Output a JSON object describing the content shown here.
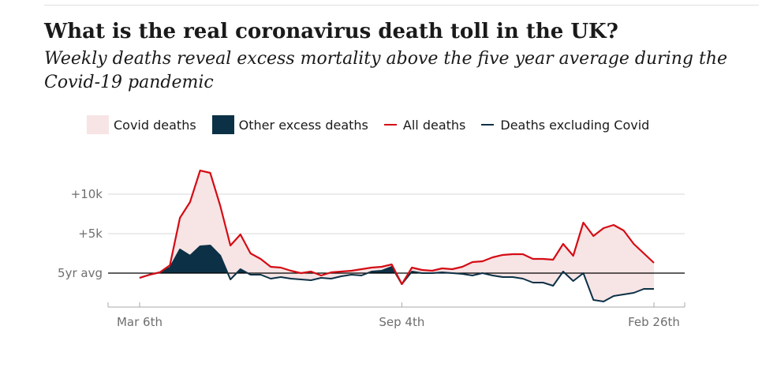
{
  "title": "What is the real coronavirus death toll in the UK?",
  "subtitle": "Weekly deaths reveal excess mortality above the five year average during the Covid-19 pandemic",
  "colors": {
    "covid": "#f7e4e5",
    "other_excess": "#0c3146",
    "all_deaths": "#d40c14",
    "excl_covid": "#0c3146",
    "baseline": "#000000",
    "grid": "#d9d9d9",
    "axis": "#aaaaaa",
    "tick_text": "#6e6e6e"
  },
  "legend": [
    {
      "key": "covid",
      "label": "Covid deaths",
      "kind": "box",
      "icon": "pink-box"
    },
    {
      "key": "other_excess",
      "label": "Other excess deaths",
      "kind": "box",
      "icon": "navy-box"
    },
    {
      "key": "all_deaths",
      "label": "All deaths",
      "kind": "line",
      "icon": "red-line"
    },
    {
      "key": "excl_covid",
      "label": "Deaths excluding Covid",
      "kind": "line",
      "icon": "navy-line"
    }
  ],
  "chart_data": {
    "type": "area",
    "title": "What is the real coronavirus death toll in the UK?",
    "subtitle": "Weekly deaths reveal excess mortality above the five year average during the Covid-19 pandemic",
    "x_unit": "week",
    "x_tick_weeks": [
      0,
      26,
      51
    ],
    "x_tick_labels": [
      "Mar 6th",
      "Sep 4th",
      "Feb 26th"
    ],
    "y_ticks": [
      0,
      5000,
      10000
    ],
    "y_tick_labels": [
      "5yr avg",
      "+5k",
      "+10k"
    ],
    "ylim": [
      -3500,
      13500
    ],
    "grid": true,
    "baseline": 0,
    "series": [
      {
        "name": "All deaths",
        "values": [
          -600,
          -200,
          100,
          1000,
          7000,
          9000,
          13000,
          12700,
          8500,
          3500,
          4900,
          2500,
          1800,
          800,
          700,
          300,
          0,
          200,
          -300,
          100,
          200,
          300,
          500,
          700,
          800,
          1100,
          -1400,
          700,
          400,
          300,
          600,
          500,
          800,
          1400,
          1500,
          2000,
          2300,
          2400,
          2400,
          1800,
          1800,
          1700,
          3700,
          2200,
          6400,
          4700,
          5700,
          6100,
          5400,
          3700,
          2500,
          1300
        ]
      },
      {
        "name": "Deaths excluding Covid",
        "values": [
          -600,
          -200,
          100,
          700,
          3000,
          2200,
          3400,
          3500,
          2200,
          -800,
          500,
          -200,
          -200,
          -700,
          -500,
          -700,
          -800,
          -900,
          -600,
          -700,
          -400,
          -200,
          -300,
          200,
          300,
          800,
          -1400,
          200,
          0,
          0,
          100,
          0,
          -100,
          -300,
          0,
          -300,
          -500,
          -500,
          -700,
          -1200,
          -1200,
          -1600,
          200,
          -1000,
          0,
          -3400,
          -3600,
          -2900,
          -2700,
          -2500,
          -2000,
          -2000
        ]
      }
    ]
  }
}
